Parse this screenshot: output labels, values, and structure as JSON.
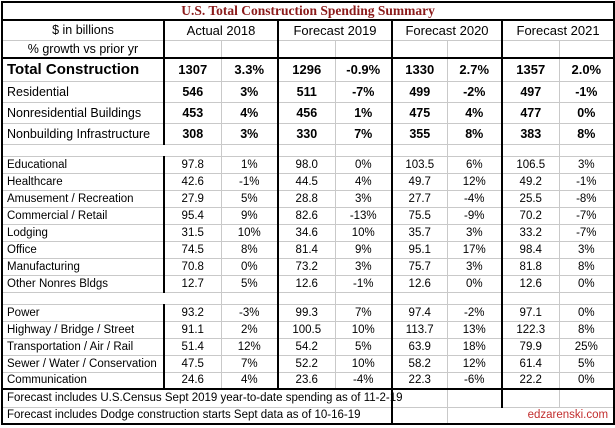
{
  "watermark": "edzarenski.com",
  "footnotes": [
    "Forecast includes U.S.Census Sept 2019 year-to-date spending as of 11-2-19",
    "Forecast includes Dodge construction starts Sept data as of 10-16-19"
  ],
  "colors": {
    "title_text": "#8B1B1B",
    "watermark_text": "#C22E2E",
    "grid_light": "#C9C9C9",
    "grid_dark": "#000000",
    "background": "#FFFFFF"
  },
  "chart_data": {
    "type": "table",
    "title": "U.S. Total Construction Spending Summary",
    "value_unit": "$ in billions",
    "growth_unit": "% growth vs prior yr",
    "columns": [
      "Actual 2018",
      "Forecast 2019",
      "Forecast 2020",
      "Forecast 2021"
    ],
    "column_value_pattern": "each year column = [spending $B, % growth vs prior yr]",
    "sections": [
      {
        "name": "summary",
        "rows": [
          {
            "label": "Total Construction",
            "style": "total",
            "values": [
              "1307",
              "3.3%",
              "1296",
              "-0.9%",
              "1330",
              "2.7%",
              "1357",
              "2.0%"
            ]
          },
          {
            "label": "Residential",
            "style": "summary",
            "values": [
              "546",
              "3%",
              "511",
              "-7%",
              "499",
              "-2%",
              "497",
              "-1%"
            ]
          },
          {
            "label": "Nonresidential Buildings",
            "style": "summary",
            "values": [
              "453",
              "4%",
              "456",
              "1%",
              "475",
              "4%",
              "477",
              "0%"
            ]
          },
          {
            "label": "Nonbuilding Infrastructure",
            "style": "summary",
            "values": [
              "308",
              "3%",
              "330",
              "7%",
              "355",
              "8%",
              "383",
              "8%"
            ]
          }
        ]
      },
      {
        "name": "nonresidential-buildings-detail",
        "rows": [
          {
            "label": "Educational",
            "style": "detail",
            "values": [
              "97.8",
              "1%",
              "98.0",
              "0%",
              "103.5",
              "6%",
              "106.5",
              "3%"
            ]
          },
          {
            "label": "Healthcare",
            "style": "detail",
            "values": [
              "42.6",
              "-1%",
              "44.5",
              "4%",
              "49.7",
              "12%",
              "49.2",
              "-1%"
            ]
          },
          {
            "label": "Amusement / Recreation",
            "style": "detail",
            "values": [
              "27.9",
              "5%",
              "28.8",
              "3%",
              "27.7",
              "-4%",
              "25.5",
              "-8%"
            ]
          },
          {
            "label": "Commercial / Retail",
            "style": "detail",
            "values": [
              "95.4",
              "9%",
              "82.6",
              "-13%",
              "75.5",
              "-9%",
              "70.2",
              "-7%"
            ]
          },
          {
            "label": "Lodging",
            "style": "detail",
            "values": [
              "31.5",
              "10%",
              "34.6",
              "10%",
              "35.7",
              "3%",
              "33.2",
              "-7%"
            ]
          },
          {
            "label": "Office",
            "style": "detail",
            "values": [
              "74.5",
              "8%",
              "81.4",
              "9%",
              "95.1",
              "17%",
              "98.4",
              "3%"
            ]
          },
          {
            "label": "Manufacturing",
            "style": "detail",
            "values": [
              "70.8",
              "0%",
              "73.2",
              "3%",
              "75.7",
              "3%",
              "81.8",
              "8%"
            ]
          },
          {
            "label": "Other Nonres Bldgs",
            "style": "detail",
            "values": [
              "12.7",
              "5%",
              "12.6",
              "-1%",
              "12.6",
              "0%",
              "12.6",
              "0%"
            ]
          }
        ]
      },
      {
        "name": "nonbuilding-infrastructure-detail",
        "rows": [
          {
            "label": "Power",
            "style": "detail",
            "values": [
              "93.2",
              "-3%",
              "99.3",
              "7%",
              "97.4",
              "-2%",
              "97.1",
              "0%"
            ]
          },
          {
            "label": "Highway / Bridge / Street",
            "style": "detail",
            "values": [
              "91.1",
              "2%",
              "100.5",
              "10%",
              "113.7",
              "13%",
              "122.3",
              "8%"
            ]
          },
          {
            "label": "Transportation / Air / Rail",
            "style": "detail",
            "values": [
              "51.4",
              "12%",
              "54.2",
              "5%",
              "63.9",
              "18%",
              "79.9",
              "25%"
            ]
          },
          {
            "label": "Sewer / Water / Conservation",
            "style": "detail",
            "values": [
              "47.5",
              "7%",
              "52.2",
              "10%",
              "58.2",
              "12%",
              "61.4",
              "5%"
            ]
          },
          {
            "label": "Communication",
            "style": "detail",
            "values": [
              "24.6",
              "4%",
              "23.6",
              "-4%",
              "22.3",
              "-6%",
              "22.2",
              "0%"
            ]
          }
        ]
      }
    ]
  }
}
